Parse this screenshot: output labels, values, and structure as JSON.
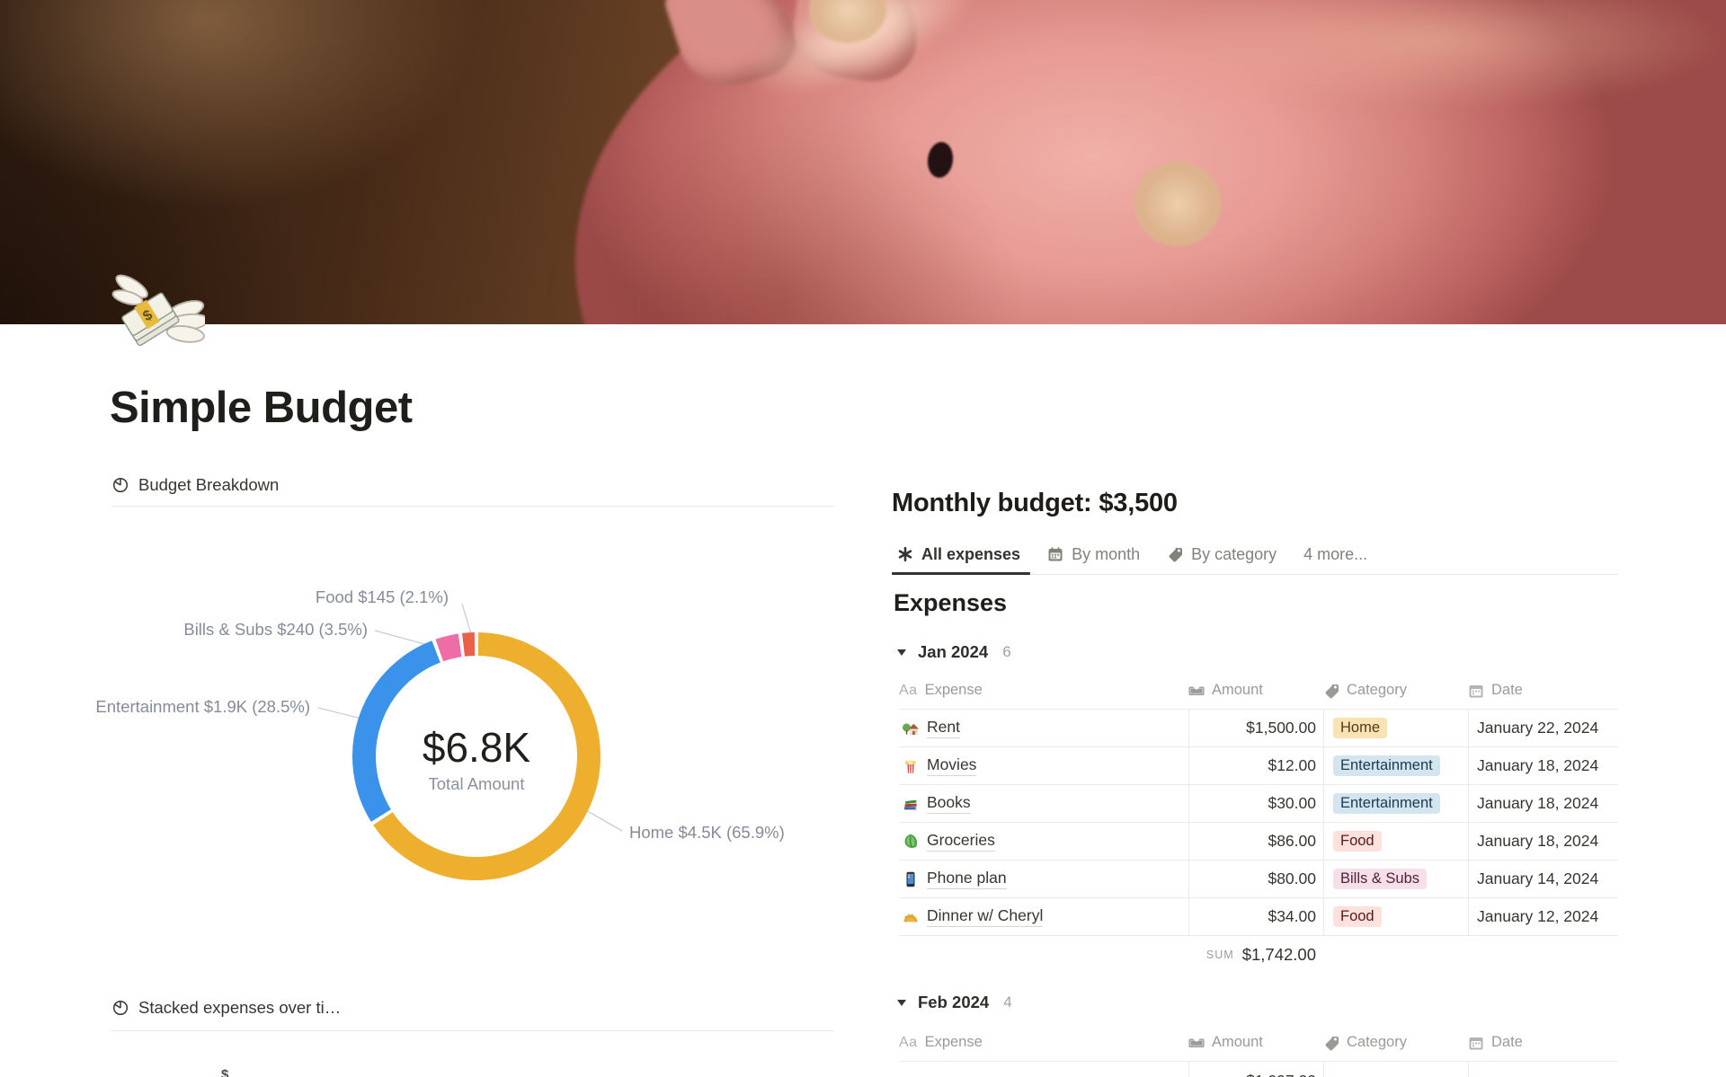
{
  "page": {
    "title": "Simple Budget",
    "icon": "money-with-wings-emoji"
  },
  "left": {
    "chart1_heading": "Budget Breakdown",
    "chart2_heading": "Stacked expenses over ti…",
    "axis_partial": "$"
  },
  "chart_data": {
    "type": "pie",
    "title": "Budget Breakdown",
    "center_value": "$6.8K",
    "center_label": "Total Amount",
    "total_display": "$6.8K",
    "legend_position": "callout-labels",
    "slices": [
      {
        "label": "Home",
        "amount": 4500,
        "amount_display": "$4.5K",
        "pct": 65.9,
        "callout": "Home $4.5K (65.9%)",
        "color": "#EDAF2D"
      },
      {
        "label": "Entertainment",
        "amount": 1900,
        "amount_display": "$1.9K",
        "pct": 28.5,
        "callout": "Entertainment $1.9K (28.5%)",
        "color": "#3A92EA"
      },
      {
        "label": "Bills & Subs",
        "amount": 240,
        "amount_display": "$240",
        "pct": 3.5,
        "callout": "Bills & Subs $240 (3.5%)",
        "color": "#ED6EA7"
      },
      {
        "label": "Food",
        "amount": 145,
        "amount_display": "$145",
        "pct": 2.1,
        "callout": "Food $145 (2.1%)",
        "color": "#EA6048"
      }
    ]
  },
  "right": {
    "monthly_budget_heading": "Monthly budget: $3,500",
    "tabs": [
      {
        "label": "All expenses",
        "icon": "asterisk-icon",
        "active": true
      },
      {
        "label": "By month",
        "icon": "calendar-icon",
        "active": false
      },
      {
        "label": "By category",
        "icon": "tag-icon",
        "active": false
      },
      {
        "label": "4 more...",
        "icon": "",
        "active": false
      }
    ],
    "expenses_title": "Expenses",
    "columns": {
      "expense_prefix": "Aa",
      "expense": "Expense",
      "amount": "Amount",
      "category": "Category",
      "date": "Date"
    },
    "groups": [
      {
        "name": "Jan 2024",
        "count": "6",
        "rows": [
          {
            "icon": "house-garden-emoji",
            "name": "Rent",
            "amount": "$1,500.00",
            "category": "Home",
            "badge_color": "orange",
            "date": "January 22, 2024"
          },
          {
            "icon": "popcorn-emoji",
            "name": "Movies",
            "amount": "$12.00",
            "category": "Entertainment",
            "badge_color": "blue",
            "date": "January 18, 2024"
          },
          {
            "icon": "books-emoji",
            "name": "Books",
            "amount": "$30.00",
            "category": "Entertainment",
            "badge_color": "blue",
            "date": "January 18, 2024"
          },
          {
            "icon": "leafy-green-emoji",
            "name": "Groceries",
            "amount": "$86.00",
            "category": "Food",
            "badge_color": "red",
            "date": "January 18, 2024"
          },
          {
            "icon": "mobile-phone-emoji",
            "name": "Phone plan",
            "amount": "$80.00",
            "category": "Bills & Subs",
            "badge_color": "pink",
            "date": "January 14, 2024"
          },
          {
            "icon": "taco-emoji",
            "name": "Dinner w/ Cheryl",
            "amount": "$34.00",
            "category": "Food",
            "badge_color": "red",
            "date": "January 12, 2024"
          }
        ],
        "sum_label": "SUM",
        "sum_value": "$1,742.00"
      },
      {
        "name": "Feb 2024",
        "count": "4",
        "partial_row_amount": "$1,097.00"
      }
    ]
  },
  "colors": {
    "badge_orange_bg": "#FAE3B3",
    "badge_blue_bg": "#D3E5EF",
    "badge_red_bg": "#FDE1DC",
    "badge_pink_bg": "#F6DFE8",
    "active_tab": "#34322E",
    "divider": "#EBEAE8",
    "gray_text": "#9B9A97"
  }
}
